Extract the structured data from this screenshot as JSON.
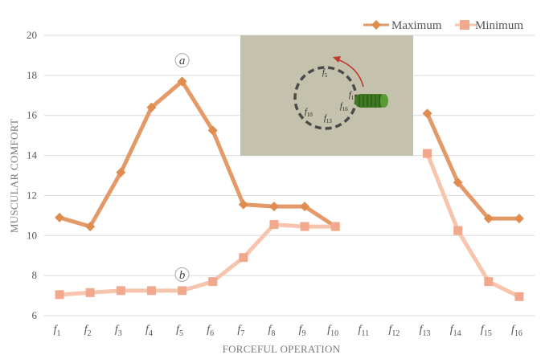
{
  "chart_data": {
    "type": "line",
    "xlabel": "FORCEFUL OPERATION",
    "ylabel": "MUSCULAR COMFORT",
    "ylim": [
      6,
      20
    ],
    "yticks": [
      6,
      8,
      10,
      12,
      14,
      16,
      18,
      20
    ],
    "grid": "horizontal",
    "legend_position": "top-right",
    "categories": [
      {
        "base": "f",
        "sub": "1"
      },
      {
        "base": "f",
        "sub": "2"
      },
      {
        "base": "f",
        "sub": "3"
      },
      {
        "base": "f",
        "sub": "4"
      },
      {
        "base": "f",
        "sub": "5"
      },
      {
        "base": "f",
        "sub": "6"
      },
      {
        "base": "f",
        "sub": "7"
      },
      {
        "base": "f",
        "sub": "8"
      },
      {
        "base": "f",
        "sub": "9"
      },
      {
        "base": "f",
        "sub": "10"
      },
      {
        "base": "f",
        "sub": "11"
      },
      {
        "base": "f",
        "sub": "12"
      },
      {
        "base": "f",
        "sub": "13"
      },
      {
        "base": "f",
        "sub": "14"
      },
      {
        "base": "f",
        "sub": "15"
      },
      {
        "base": "f",
        "sub": "16"
      }
    ],
    "series": [
      {
        "name": "Maximum",
        "color": "#e08c4e",
        "line_color": "#e39a68",
        "marker": "diamond",
        "values": [
          10.9,
          10.45,
          13.15,
          16.4,
          17.7,
          15.25,
          11.55,
          11.45,
          11.45,
          10.45,
          null,
          null,
          16.1,
          12.65,
          10.85,
          10.85
        ]
      },
      {
        "name": "Minimum",
        "color": "#f2a88c",
        "line_color": "#f7c4ad",
        "marker": "square",
        "values": [
          7.05,
          7.15,
          7.25,
          7.25,
          7.25,
          7.7,
          8.9,
          10.55,
          10.45,
          10.45,
          null,
          null,
          14.1,
          10.25,
          7.7,
          6.95
        ]
      }
    ],
    "annotations": [
      {
        "text": "a",
        "x_index": 4,
        "y": 18.75
      },
      {
        "text": "b",
        "x_index": 4,
        "y": 8.05
      }
    ],
    "inset": {
      "background": "#c4c2ac",
      "labels": [
        {
          "base": "f",
          "sub": "5"
        },
        {
          "base": "f",
          "sub": "1"
        },
        {
          "base": "f",
          "sub": "16"
        },
        {
          "base": "f",
          "sub": "10"
        },
        {
          "base": "f",
          "sub": "13"
        }
      ]
    }
  }
}
